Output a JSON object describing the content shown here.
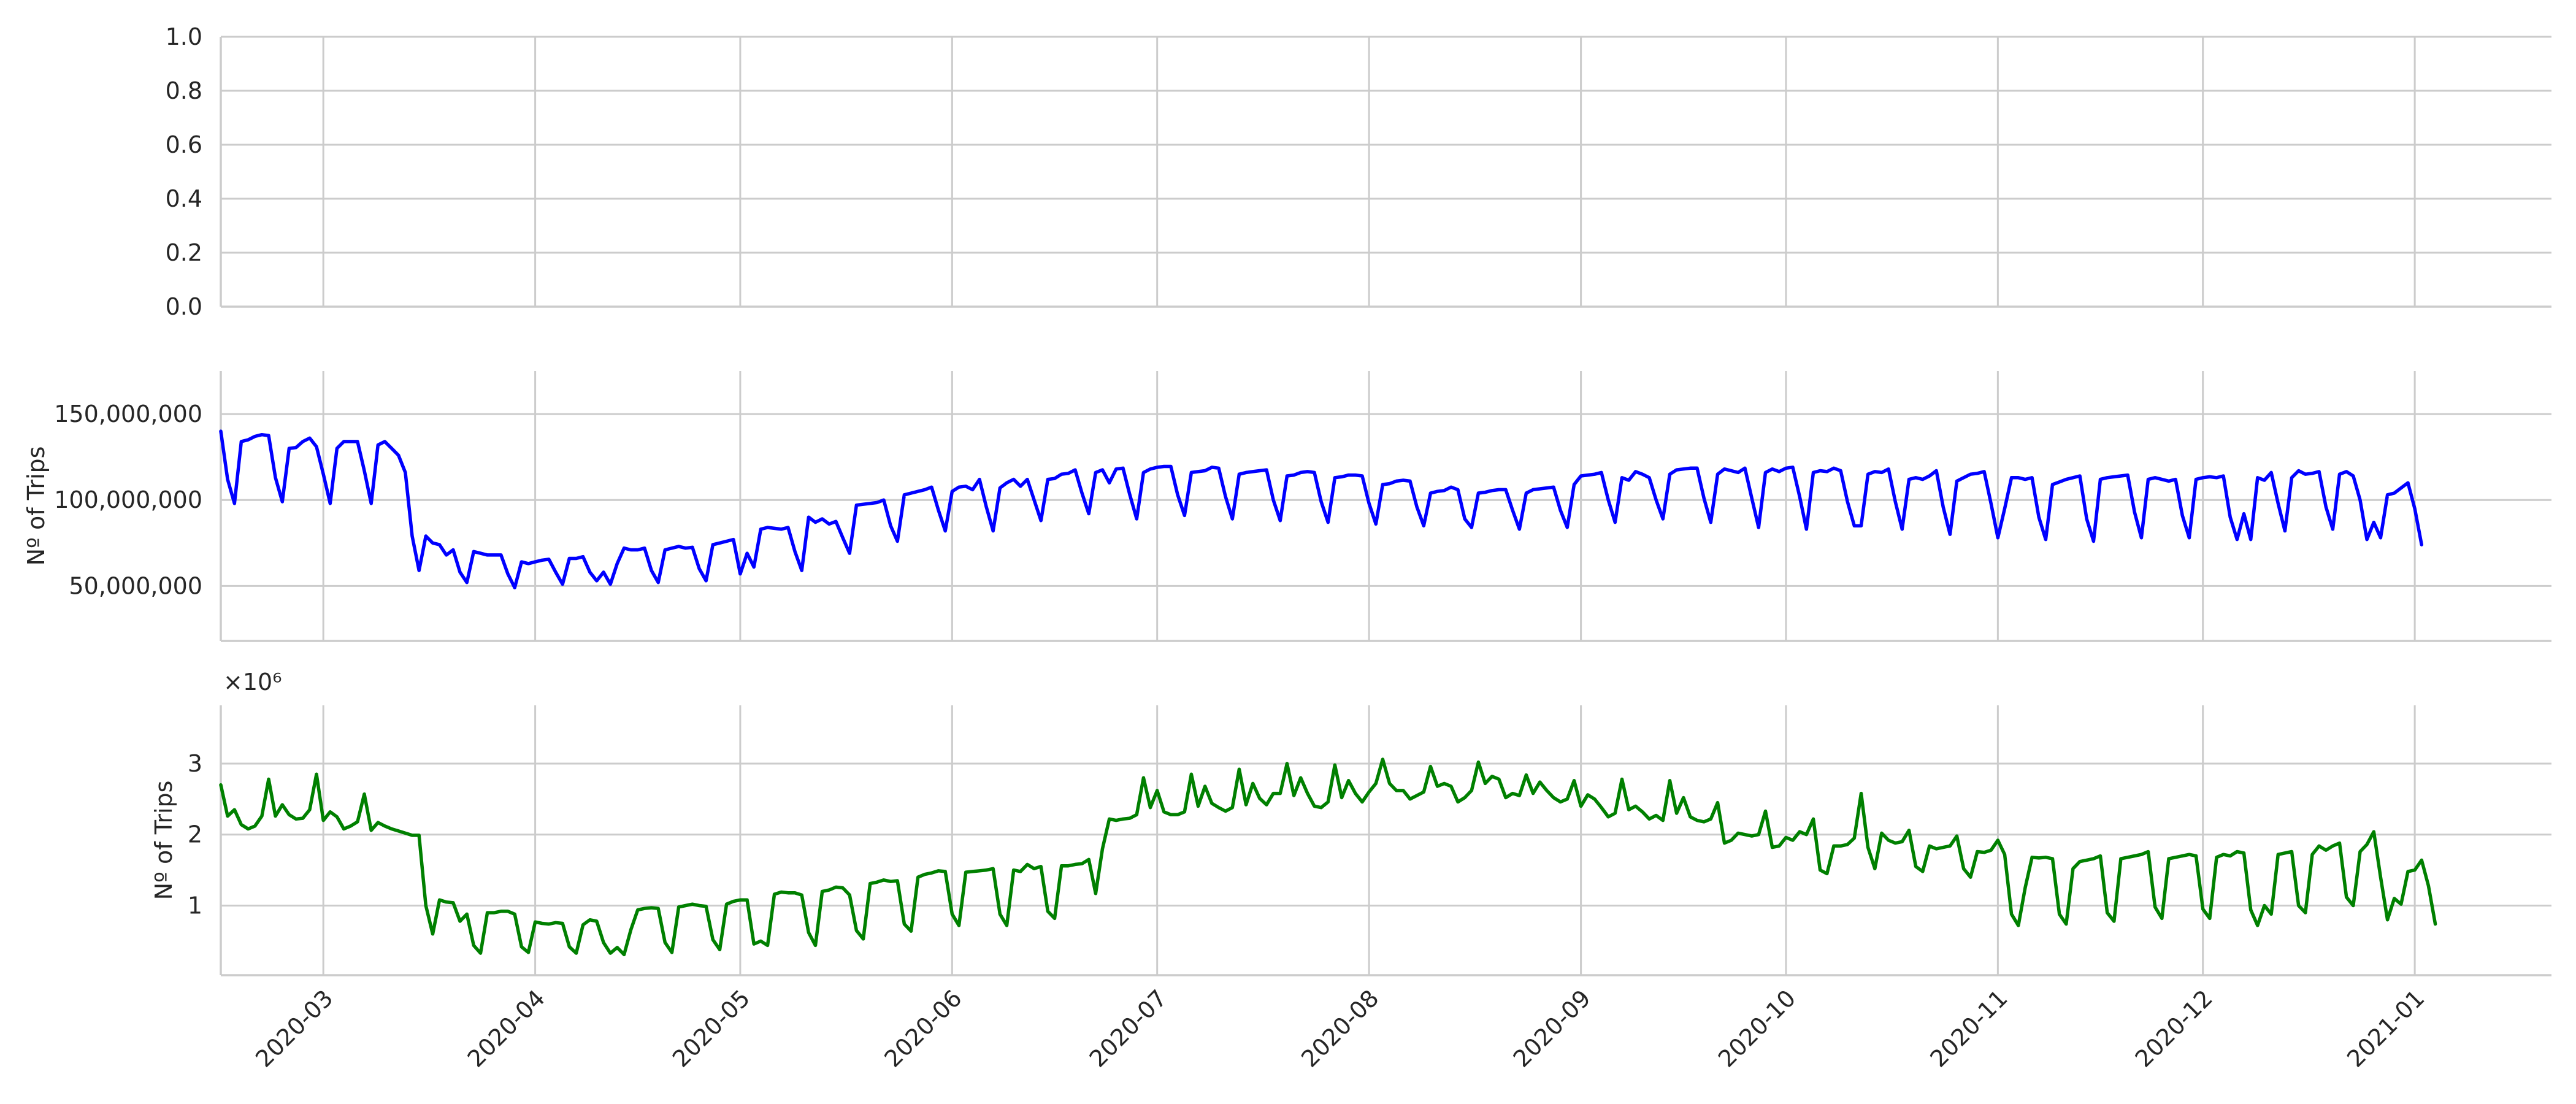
{
  "chart_data": [
    {
      "type": "line",
      "panel": "top",
      "title": "",
      "xlabel": "",
      "ylabel": "",
      "x_type": "date",
      "xlim": [
        "2020-02-15",
        "2021-01-21"
      ],
      "ylim": [
        0,
        1
      ],
      "y_ticks": [
        0.0,
        0.2,
        0.4,
        0.6,
        0.8,
        1.0
      ],
      "y_tick_labels": [
        "0.0",
        "0.2",
        "0.4",
        "0.6",
        "0.8",
        "1.0"
      ],
      "grid": true,
      "series": []
    },
    {
      "type": "line",
      "panel": "middle",
      "title": "",
      "xlabel": "",
      "ylabel": "Nº of Trips",
      "x_type": "date",
      "xlim": [
        "2020-02-15",
        "2021-01-21"
      ],
      "ylim": [
        18000000,
        175000000
      ],
      "y_ticks": [
        50000000,
        100000000,
        150000000
      ],
      "y_tick_labels": [
        "50,000,000",
        "100,000,000",
        "150,000,000"
      ],
      "grid": true,
      "series": [
        {
          "color": "#0000ff",
          "x_start": "2020-02-15",
          "x_step_days": 1,
          "values": [
            140000000,
            112000000,
            98000000,
            134000000,
            135000000,
            137000000,
            138000000,
            137500000,
            113000000,
            99000000,
            130000000,
            130500000,
            134000000,
            136000000,
            131000000,
            115000000,
            98000000,
            130000000,
            134000000,
            134000000,
            134000000,
            117000000,
            98000000,
            132000000,
            134000000,
            130000000,
            126000000,
            116000000,
            79000000,
            59000000,
            79000000,
            75000000,
            74000000,
            68000000,
            71000000,
            58000000,
            52000000,
            70000000,
            69000000,
            68000000,
            68000000,
            68000000,
            57000000,
            49000000,
            64000000,
            63000000,
            64000000,
            65000000,
            65500000,
            58000000,
            51000000,
            66000000,
            66000000,
            67000000,
            58000000,
            53000000,
            58000000,
            51000000,
            63000000,
            72000000,
            71000000,
            71000000,
            72000000,
            59000000,
            52000000,
            71000000,
            72000000,
            73000000,
            72000000,
            72500000,
            60000000,
            53000000,
            74000000,
            75000000,
            76000000,
            77000000,
            57000000,
            69000000,
            61000000,
            83000000,
            84000000,
            83500000,
            83000000,
            84000000,
            70000000,
            59000000,
            90000000,
            87000000,
            89000000,
            86000000,
            87500000,
            78000000,
            69000000,
            97000000,
            97500000,
            98000000,
            98500000,
            100000000,
            85000000,
            76000000,
            103000000,
            104000000,
            105000000,
            106000000,
            107500000,
            94000000,
            82000000,
            105000000,
            107500000,
            108000000,
            106000000,
            112000000,
            96000000,
            82000000,
            107000000,
            110000000,
            112000000,
            108000000,
            112000000,
            100000000,
            88000000,
            112000000,
            112500000,
            115000000,
            115500000,
            117500000,
            104000000,
            92000000,
            116000000,
            117500000,
            110000000,
            118000000,
            118500000,
            103000000,
            89000000,
            116000000,
            118000000,
            119000000,
            119500000,
            119500000,
            103000000,
            91000000,
            116000000,
            116500000,
            117000000,
            119000000,
            118500000,
            102000000,
            89000000,
            115000000,
            116000000,
            116500000,
            117000000,
            117500000,
            100000000,
            88000000,
            114000000,
            114500000,
            116000000,
            116500000,
            116000000,
            99000000,
            87000000,
            113000000,
            113500000,
            114500000,
            114500000,
            114000000,
            98000000,
            86000000,
            109000000,
            109500000,
            111000000,
            111500000,
            111000000,
            96000000,
            85000000,
            104000000,
            105000000,
            105500000,
            107500000,
            106000000,
            89000000,
            84000000,
            104000000,
            104500000,
            105500000,
            106000000,
            106000000,
            94000000,
            83000000,
            104000000,
            106000000,
            106500000,
            107000000,
            107500000,
            94000000,
            84000000,
            109000000,
            114000000,
            114500000,
            115000000,
            116000000,
            100000000,
            87000000,
            113000000,
            111500000,
            116500000,
            115000000,
            113000000,
            100000000,
            89000000,
            115000000,
            117500000,
            118000000,
            118500000,
            118500000,
            101000000,
            87000000,
            115000000,
            118000000,
            117000000,
            116000000,
            118500000,
            101000000,
            84000000,
            116000000,
            118000000,
            116500000,
            118500000,
            119000000,
            102000000,
            83000000,
            116000000,
            117000000,
            116500000,
            118500000,
            117000000,
            99000000,
            85000000,
            85000000,
            115000000,
            116500000,
            116000000,
            118000000,
            99000000,
            83000000,
            112000000,
            113000000,
            112000000,
            114000000,
            117000000,
            96000000,
            80000000,
            111000000,
            113000000,
            115000000,
            115500000,
            116500000,
            98000000,
            78000000,
            95000000,
            113000000,
            113000000,
            112000000,
            113000000,
            90000000,
            77000000,
            109000000,
            110500000,
            112000000,
            113000000,
            114000000,
            89000000,
            76000000,
            112000000,
            113000000,
            113500000,
            114000000,
            114500000,
            93000000,
            78000000,
            112000000,
            113000000,
            112000000,
            111000000,
            112000000,
            91000000,
            78000000,
            112000000,
            113000000,
            113500000,
            113000000,
            114000000,
            90000000,
            77000000,
            92000000,
            77000000,
            113000000,
            111500000,
            116000000,
            98000000,
            82000000,
            113000000,
            117000000,
            115000000,
            115500000,
            116500000,
            96000000,
            83000000,
            115000000,
            116500000,
            114000000,
            100000000,
            77000000,
            87000000,
            78000000,
            103000000,
            104000000,
            107000000,
            110000000,
            95000000,
            74000000
          ]
        }
      ]
    },
    {
      "type": "line",
      "panel": "bottom",
      "title": "",
      "xlabel": "",
      "ylabel": "Nº of Trips",
      "y_offset_label": "×10⁶",
      "x_type": "date",
      "xlim": [
        "2020-02-15",
        "2021-01-21"
      ],
      "ylim": [
        0.02,
        3.82
      ],
      "y_ticks": [
        1,
        2,
        3
      ],
      "y_tick_labels": [
        "1",
        "2",
        "3"
      ],
      "grid": true,
      "series": [
        {
          "color": "#008000",
          "x_start": "2020-02-15",
          "x_step_days": 1,
          "values": [
            2.7,
            2.26,
            2.35,
            2.14,
            2.08,
            2.12,
            2.26,
            2.78,
            2.26,
            2.42,
            2.28,
            2.22,
            2.23,
            2.35,
            2.85,
            2.2,
            2.32,
            2.25,
            2.08,
            2.12,
            2.18,
            2.57,
            2.06,
            2.17,
            2.12,
            2.08,
            2.05,
            2.02,
            1.99,
            1.99,
            1.0,
            0.6,
            1.08,
            1.05,
            1.04,
            0.78,
            0.88,
            0.44,
            0.33,
            0.9,
            0.9,
            0.92,
            0.92,
            0.88,
            0.42,
            0.34,
            0.77,
            0.75,
            0.74,
            0.76,
            0.75,
            0.42,
            0.33,
            0.73,
            0.8,
            0.78,
            0.48,
            0.33,
            0.41,
            0.31,
            0.66,
            0.94,
            0.96,
            0.97,
            0.96,
            0.48,
            0.34,
            0.98,
            1.0,
            1.02,
            1.0,
            0.99,
            0.52,
            0.38,
            1.02,
            1.06,
            1.08,
            1.08,
            0.46,
            0.5,
            0.44,
            1.16,
            1.19,
            1.18,
            1.18,
            1.15,
            0.62,
            0.44,
            1.2,
            1.22,
            1.26,
            1.25,
            1.15,
            0.65,
            0.53,
            1.31,
            1.33,
            1.36,
            1.34,
            1.35,
            0.74,
            0.64,
            1.4,
            1.44,
            1.46,
            1.49,
            1.48,
            0.88,
            0.72,
            1.47,
            1.48,
            1.49,
            1.5,
            1.52,
            0.88,
            0.72,
            1.5,
            1.48,
            1.58,
            1.52,
            1.55,
            0.92,
            0.82,
            1.56,
            1.56,
            1.58,
            1.59,
            1.65,
            1.17,
            1.8,
            2.22,
            2.2,
            2.22,
            2.23,
            2.28,
            2.8,
            2.38,
            2.62,
            2.32,
            2.28,
            2.28,
            2.32,
            2.85,
            2.4,
            2.68,
            2.44,
            2.38,
            2.33,
            2.38,
            2.92,
            2.42,
            2.72,
            2.51,
            2.42,
            2.58,
            2.58,
            3.0,
            2.55,
            2.8,
            2.58,
            2.4,
            2.38,
            2.46,
            2.98,
            2.52,
            2.76,
            2.58,
            2.46,
            2.6,
            2.72,
            3.06,
            2.72,
            2.62,
            2.62,
            2.5,
            2.55,
            2.6,
            2.96,
            2.68,
            2.72,
            2.68,
            2.46,
            2.52,
            2.62,
            3.02,
            2.72,
            2.82,
            2.78,
            2.52,
            2.58,
            2.55,
            2.84,
            2.58,
            2.74,
            2.62,
            2.52,
            2.46,
            2.5,
            2.76,
            2.4,
            2.56,
            2.5,
            2.38,
            2.25,
            2.3,
            2.78,
            2.35,
            2.4,
            2.32,
            2.22,
            2.27,
            2.2,
            2.76,
            2.3,
            2.52,
            2.25,
            2.2,
            2.18,
            2.22,
            2.45,
            1.88,
            1.92,
            2.02,
            2.0,
            1.98,
            2.0,
            2.33,
            1.82,
            1.84,
            1.96,
            1.92,
            2.04,
            2.0,
            2.22,
            1.5,
            1.45,
            1.84,
            1.84,
            1.86,
            1.95,
            2.58,
            1.82,
            1.52,
            2.02,
            1.92,
            1.88,
            1.9,
            2.06,
            1.55,
            1.48,
            1.84,
            1.8,
            1.82,
            1.84,
            1.98,
            1.52,
            1.4,
            1.76,
            1.75,
            1.78,
            1.92,
            1.72,
            0.88,
            0.72,
            1.25,
            1.68,
            1.67,
            1.68,
            1.66,
            0.88,
            0.74,
            1.52,
            1.62,
            1.64,
            1.66,
            1.7,
            0.9,
            0.78,
            1.66,
            1.68,
            1.7,
            1.72,
            1.76,
            0.98,
            0.82,
            1.66,
            1.68,
            1.7,
            1.72,
            1.7,
            0.95,
            0.82,
            1.68,
            1.72,
            1.7,
            1.76,
            1.74,
            0.94,
            0.72,
            1.0,
            0.88,
            1.72,
            1.74,
            1.76,
            1.0,
            0.9,
            1.72,
            1.84,
            1.78,
            1.84,
            1.88,
            1.12,
            1.0,
            1.76,
            1.86,
            2.04,
            1.4,
            0.8,
            1.1,
            1.02,
            1.48,
            1.5,
            1.64,
            1.28,
            0.74
          ]
        }
      ]
    }
  ],
  "shared_x_axis": {
    "tick_dates": [
      "2020-03-01",
      "2020-04-01",
      "2020-05-01",
      "2020-06-01",
      "2020-07-01",
      "2020-08-01",
      "2020-09-01",
      "2020-10-01",
      "2020-11-01",
      "2020-12-01",
      "2021-01-01"
    ],
    "tick_labels": [
      "2020-03",
      "2020-04",
      "2020-05",
      "2020-06",
      "2020-07",
      "2020-08",
      "2020-09",
      "2020-10",
      "2020-11",
      "2020-12",
      "2021-01"
    ],
    "tick_rotation_deg": 45
  }
}
